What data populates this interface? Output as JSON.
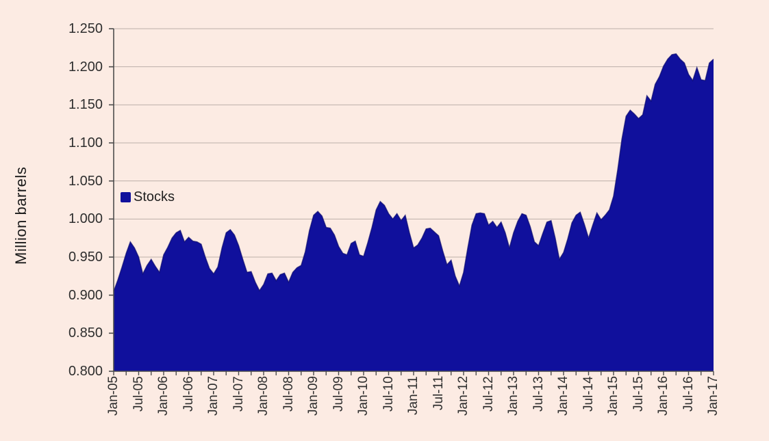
{
  "chart_data": {
    "type": "area",
    "title": "",
    "xlabel": "",
    "ylabel": "Million barrels",
    "legend": [
      {
        "label": "Stocks",
        "color": "#10109c"
      }
    ],
    "legend_position": "inside-upper-left",
    "grid": "horizontal",
    "ylim": [
      0.8,
      1.25
    ],
    "y_ticks": [
      "0.800",
      "0.850",
      "0.900",
      "0.950",
      "1.000",
      "1.050",
      "1.100",
      "1.150",
      "1.200",
      "1.250"
    ],
    "x_start": "Jan-05",
    "x_end": "Jan-17",
    "x_tick_labels": [
      "Jan-05",
      "Jul-05",
      "Jan-06",
      "Jul-06",
      "Jan-07",
      "Jul-07",
      "Jan-08",
      "Jul-08",
      "Jan-09",
      "Jul-09",
      "Jan-10",
      "Jul-10",
      "Jan-11",
      "Jul-11",
      "Jan-12",
      "Jul-12",
      "Jan-13",
      "Jul-13",
      "Jan-14",
      "Jul-14",
      "Jan-15",
      "Jul-15",
      "Jan-16",
      "Jul-16",
      "Jan-17"
    ],
    "x_label_every_months": 6,
    "x_minor_tick_every_months": 3,
    "series": [
      {
        "name": "Stocks",
        "unit": "million barrels",
        "frequency": "monthly",
        "values": [
          0.905,
          0.92,
          0.937,
          0.955,
          0.97,
          0.962,
          0.95,
          0.928,
          0.939,
          0.947,
          0.938,
          0.93,
          0.953,
          0.963,
          0.975,
          0.982,
          0.985,
          0.97,
          0.976,
          0.971,
          0.97,
          0.967,
          0.95,
          0.935,
          0.928,
          0.937,
          0.962,
          0.982,
          0.986,
          0.979,
          0.965,
          0.947,
          0.93,
          0.931,
          0.917,
          0.906,
          0.914,
          0.928,
          0.929,
          0.919,
          0.927,
          0.929,
          0.917,
          0.93,
          0.936,
          0.939,
          0.957,
          0.985,
          1.005,
          1.01,
          1.004,
          0.989,
          0.988,
          0.979,
          0.964,
          0.955,
          0.953,
          0.968,
          0.971,
          0.953,
          0.951,
          0.969,
          0.989,
          1.012,
          1.023,
          1.018,
          1.007,
          1.0,
          1.007,
          0.998,
          1.005,
          0.982,
          0.962,
          0.966,
          0.975,
          0.987,
          0.988,
          0.983,
          0.978,
          0.958,
          0.94,
          0.946,
          0.925,
          0.912,
          0.93,
          0.962,
          0.992,
          1.007,
          1.008,
          1.007,
          0.992,
          0.997,
          0.989,
          0.996,
          0.982,
          0.962,
          0.982,
          0.997,
          1.007,
          1.005,
          0.99,
          0.97,
          0.965,
          0.981,
          0.996,
          0.998,
          0.975,
          0.947,
          0.956,
          0.974,
          0.995,
          1.005,
          1.009,
          0.993,
          0.975,
          0.992,
          1.008,
          0.999,
          1.005,
          1.012,
          1.03,
          1.065,
          1.105,
          1.135,
          1.143,
          1.138,
          1.132,
          1.137,
          1.162,
          1.155,
          1.177,
          1.187,
          1.201,
          1.21,
          1.216,
          1.217,
          1.21,
          1.205,
          1.19,
          1.182,
          1.199,
          1.183,
          1.182,
          1.205,
          1.21
        ]
      }
    ],
    "colors": {
      "background": "#fcebe3",
      "area_fill": "#10109c",
      "area_edge": "#08086e",
      "gridline": "#bdafa8",
      "axis": "#4c4c4c",
      "text": "#2e2e2e"
    }
  }
}
